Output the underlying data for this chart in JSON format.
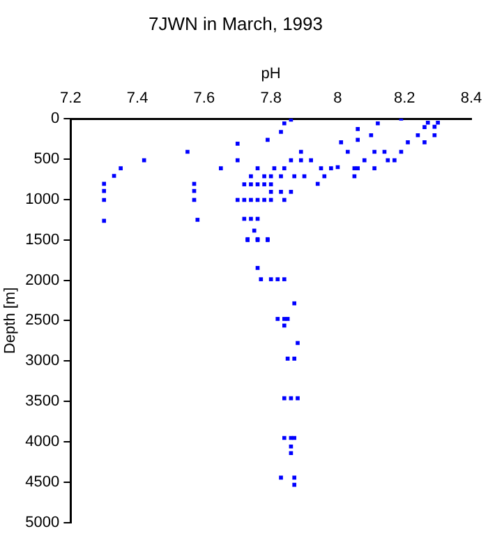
{
  "chart_data": {
    "type": "scatter",
    "title": "7JWN in March, 1993",
    "xlabel": "pH",
    "ylabel": "Depth [m]",
    "x": [
      7.3,
      7.3,
      7.3,
      7.3,
      7.33,
      7.35,
      7.42,
      7.55,
      7.57,
      7.57,
      7.57,
      7.58,
      7.65,
      7.7,
      7.7,
      7.72,
      7.74,
      7.76,
      7.78,
      7.8,
      7.7,
      7.72,
      7.74,
      7.76,
      7.78,
      7.72,
      7.74,
      7.76,
      7.75,
      7.73,
      7.76,
      7.79,
      7.79,
      7.83,
      7.84,
      7.86,
      7.76,
      7.74,
      7.78,
      7.8,
      7.83,
      7.87,
      7.81,
      7.84,
      7.86,
      7.89,
      7.89,
      7.9,
      7.94,
      7.92,
      7.95,
      7.96,
      7.98,
      8.0,
      8.01,
      8.03,
      8.05,
      8.05,
      8.06,
      8.06,
      8.08,
      8.11,
      8.1,
      8.12,
      8.14,
      8.15,
      8.17,
      8.19,
      8.19,
      8.21,
      8.24,
      8.26,
      8.27,
      8.29,
      8.3,
      8.26,
      8.29,
      8.11,
      8.06,
      7.84,
      7.8,
      7.83,
      7.86,
      7.8,
      7.73,
      7.76,
      7.79,
      7.76,
      7.77,
      7.8,
      7.82,
      7.84,
      7.87,
      7.82,
      7.84,
      7.85,
      7.84,
      7.88,
      7.85,
      7.87,
      7.84,
      7.86,
      7.88,
      7.84,
      7.86,
      7.87,
      7.86,
      7.86,
      7.83,
      7.87,
      7.87
    ],
    "values": [
      807,
      895,
      1006,
      1264,
      708,
      614,
      515,
      410,
      807,
      895,
      1006,
      1252,
      614,
      310,
      515,
      813,
      813,
      813,
      813,
      813,
      1006,
      1006,
      1006,
      1006,
      1006,
      1240,
      1240,
      1240,
      1386,
      1492,
      1492,
      1492,
      263,
      164,
      58,
      12,
      614,
      713,
      713,
      713,
      713,
      713,
      614,
      614,
      515,
      410,
      515,
      713,
      807,
      515,
      614,
      713,
      614,
      600,
      292,
      410,
      614,
      713,
      129,
      263,
      515,
      410,
      205,
      58,
      410,
      515,
      515,
      410,
      0,
      292,
      205,
      105,
      50,
      100,
      50,
      292,
      205,
      614,
      614,
      1006,
      1006,
      906,
      906,
      906,
      1503,
      1503,
      1503,
      1848,
      1988,
      1988,
      1988,
      1988,
      2286,
      2479,
      2479,
      2479,
      2561,
      2777,
      2970,
      2970,
      3461,
      3461,
      3461,
      3952,
      3952,
      3952,
      4058,
      4140,
      4444,
      4444,
      4532
    ],
    "color": "#0000ff",
    "marker": "square",
    "xlim": [
      7.2,
      8.4
    ],
    "xticks": [
      7.2,
      7.4,
      7.6,
      7.8,
      8,
      8.2,
      8.4
    ],
    "ylim": [
      5000,
      0
    ],
    "yticks": [
      0,
      500,
      1000,
      1500,
      2000,
      2500,
      3000,
      3500,
      4000,
      4500,
      5000
    ],
    "grid": false,
    "legend": false
  }
}
